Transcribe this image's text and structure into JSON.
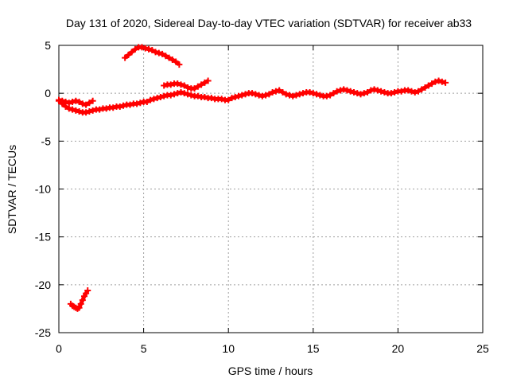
{
  "chart_data": {
    "type": "scatter",
    "title": "Day 131 of 2020, Sidereal Day-to-day VTEC variation (SDTVAR) for receiver ab33",
    "xlabel": "GPS time / hours",
    "ylabel": "SDTVAR / TECUs",
    "xlim": [
      0,
      25
    ],
    "ylim": [
      -25,
      5
    ],
    "xticks": [
      0,
      5,
      10,
      15,
      20,
      25
    ],
    "yticks": [
      -25,
      -20,
      -15,
      -10,
      -5,
      0,
      5
    ],
    "grid": true,
    "marker": "plus",
    "color": "#ff0000",
    "series": [
      {
        "name": "main-track",
        "x": [
          0.0,
          0.2,
          0.4,
          0.6,
          0.8,
          1.0,
          1.2,
          1.4,
          1.6,
          1.8,
          2.0,
          2.2,
          2.4,
          2.6,
          2.8,
          3.0,
          3.2,
          3.4,
          3.6,
          3.8,
          4.0,
          4.2,
          4.4,
          4.6,
          4.8,
          5.0,
          5.2,
          5.4,
          5.6,
          5.8,
          6.0,
          6.2,
          6.4,
          6.6,
          6.8,
          7.0,
          7.2,
          7.4,
          7.6,
          7.8,
          8.0,
          8.2,
          8.4,
          8.6,
          8.8,
          9.0,
          9.2,
          9.4,
          9.6,
          9.8,
          10.0,
          10.2,
          10.4,
          10.6,
          10.8,
          11.0,
          11.2,
          11.4,
          11.6,
          11.8,
          12.0,
          12.2,
          12.4,
          12.6,
          12.8,
          13.0,
          13.2,
          13.4,
          13.6,
          13.8,
          14.0,
          14.2,
          14.4,
          14.6,
          14.8,
          15.0,
          15.2,
          15.4,
          15.6,
          15.8,
          16.0,
          16.2,
          16.4,
          16.6,
          16.8,
          17.0,
          17.2,
          17.4,
          17.6,
          17.8,
          18.0,
          18.2,
          18.4,
          18.6,
          18.8,
          19.0,
          19.2,
          19.4,
          19.6,
          19.8,
          20.0,
          20.2,
          20.4,
          20.6,
          20.8,
          21.0,
          21.2,
          21.4,
          21.6,
          21.8,
          22.0,
          22.2,
          22.4,
          22.6,
          22.8
        ],
        "y": [
          -0.8,
          -1.1,
          -1.4,
          -1.6,
          -1.7,
          -1.8,
          -1.9,
          -2.0,
          -2.0,
          -1.9,
          -1.8,
          -1.7,
          -1.7,
          -1.6,
          -1.6,
          -1.5,
          -1.5,
          -1.4,
          -1.4,
          -1.3,
          -1.2,
          -1.2,
          -1.1,
          -1.1,
          -1.0,
          -0.9,
          -0.9,
          -0.7,
          -0.6,
          -0.5,
          -0.4,
          -0.3,
          -0.2,
          -0.2,
          -0.1,
          0.0,
          0.1,
          0.0,
          -0.1,
          -0.2,
          -0.3,
          -0.3,
          -0.4,
          -0.4,
          -0.5,
          -0.5,
          -0.6,
          -0.6,
          -0.6,
          -0.7,
          -0.7,
          -0.5,
          -0.4,
          -0.3,
          -0.2,
          -0.1,
          0.0,
          0.0,
          -0.1,
          -0.2,
          -0.3,
          -0.2,
          -0.1,
          0.1,
          0.2,
          0.3,
          0.1,
          -0.1,
          -0.2,
          -0.3,
          -0.2,
          -0.1,
          0.0,
          0.1,
          0.1,
          0.0,
          -0.1,
          -0.2,
          -0.3,
          -0.3,
          -0.2,
          0.0,
          0.2,
          0.3,
          0.4,
          0.3,
          0.2,
          0.1,
          0.0,
          -0.1,
          0.0,
          0.1,
          0.3,
          0.4,
          0.3,
          0.2,
          0.1,
          0.0,
          0.0,
          0.1,
          0.2,
          0.2,
          0.3,
          0.3,
          0.2,
          0.1,
          0.2,
          0.4,
          0.6,
          0.8,
          1.0,
          1.2,
          1.3,
          1.2,
          1.1
        ]
      },
      {
        "name": "start-arc",
        "x": [
          0.0,
          0.2,
          0.4,
          0.6,
          0.8,
          1.0,
          1.2,
          1.4,
          1.6,
          1.8,
          2.0
        ],
        "y": [
          -0.7,
          -0.8,
          -0.9,
          -1.0,
          -0.9,
          -0.8,
          -0.9,
          -1.1,
          -1.2,
          -1.0,
          -0.8
        ]
      },
      {
        "name": "arc-high",
        "x": [
          3.9,
          4.1,
          4.3,
          4.5,
          4.7,
          4.9,
          5.1,
          5.3,
          5.5,
          5.7,
          5.9,
          6.1,
          6.3,
          6.5,
          6.7,
          6.9,
          7.1
        ],
        "y": [
          3.7,
          4.0,
          4.3,
          4.6,
          4.8,
          4.8,
          4.7,
          4.6,
          4.5,
          4.3,
          4.2,
          4.1,
          3.9,
          3.7,
          3.5,
          3.3,
          3.0
        ]
      },
      {
        "name": "arc-mid",
        "x": [
          6.2,
          6.4,
          6.6,
          6.8,
          7.0,
          7.2,
          7.4,
          7.6,
          7.8,
          8.0,
          8.2,
          8.4,
          8.6,
          8.8
        ],
        "y": [
          0.8,
          0.9,
          0.9,
          1.0,
          1.0,
          0.9,
          0.8,
          0.6,
          0.5,
          0.5,
          0.7,
          0.9,
          1.1,
          1.3
        ]
      },
      {
        "name": "arc-low",
        "x": [
          0.7,
          0.8,
          0.9,
          1.0,
          1.1,
          1.2,
          1.3,
          1.4,
          1.5,
          1.6,
          1.7
        ],
        "y": [
          -22.0,
          -22.2,
          -22.3,
          -22.4,
          -22.5,
          -22.4,
          -22.0,
          -21.6,
          -21.2,
          -20.9,
          -20.6
        ]
      }
    ]
  }
}
